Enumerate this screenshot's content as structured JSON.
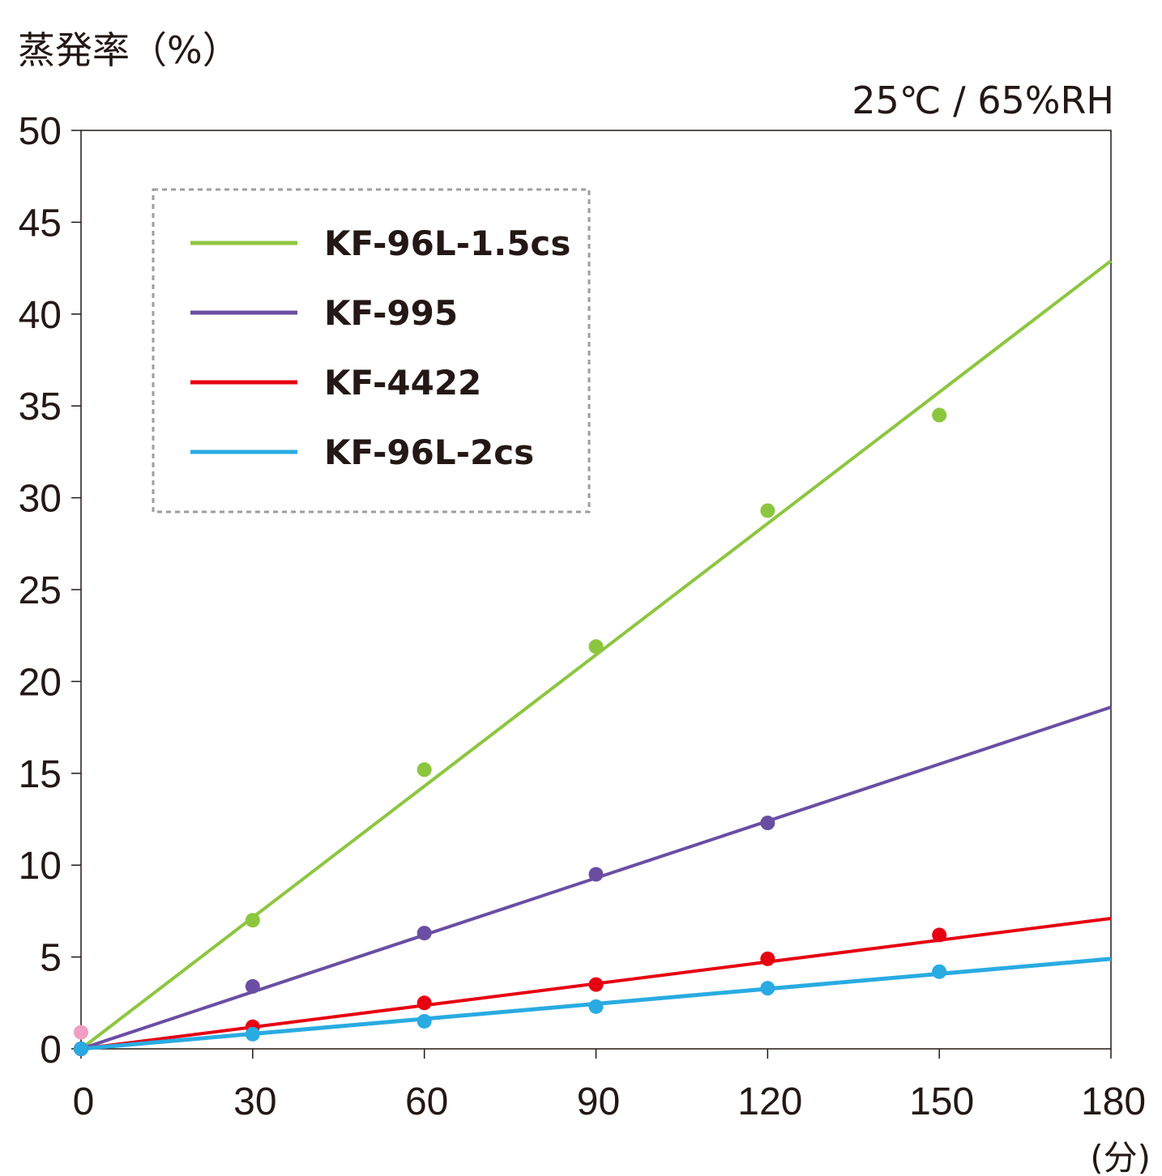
{
  "chart_data": {
    "type": "line",
    "title": "",
    "ylabel": "蒸発率（%）",
    "xlabel": "(分)",
    "condition": "25℃ / 65%RH",
    "xlim": [
      0,
      180
    ],
    "ylim": [
      0,
      50
    ],
    "xticks": [
      "0",
      "30",
      "60",
      "90",
      "120",
      "150",
      "180"
    ],
    "yticks": [
      "0",
      "5",
      "10",
      "15",
      "20",
      "25",
      "30",
      "35",
      "40",
      "45",
      "50"
    ],
    "grid": false,
    "legend_position": "top-left",
    "legend_border": "dotted",
    "series": [
      {
        "name": "KF-96L-1.5cs",
        "color": "#8cc63f",
        "points": [
          [
            0,
            0
          ],
          [
            30,
            7.0
          ],
          [
            60,
            15.2
          ],
          [
            90,
            21.9
          ],
          [
            120,
            29.3
          ],
          [
            150,
            34.5
          ]
        ],
        "fit_line": [
          [
            0,
            0
          ],
          [
            180,
            42.9
          ]
        ]
      },
      {
        "name": "KF-995",
        "color": "#6a4ea3",
        "points": [
          [
            0,
            0
          ],
          [
            30,
            3.4
          ],
          [
            60,
            6.3
          ],
          [
            90,
            9.5
          ],
          [
            120,
            12.3
          ]
        ],
        "fit_line": [
          [
            0,
            0
          ],
          [
            180,
            18.6
          ]
        ]
      },
      {
        "name": "KF-4422",
        "color": "#e60012",
        "points": [
          [
            0,
            0
          ],
          [
            30,
            1.2
          ],
          [
            60,
            2.5
          ],
          [
            90,
            3.5
          ],
          [
            120,
            4.9
          ],
          [
            150,
            6.2
          ]
        ],
        "fit_line": [
          [
            0,
            0
          ],
          [
            180,
            7.1
          ]
        ]
      },
      {
        "name": "KF-96L-2cs",
        "color": "#29abe2",
        "points": [
          [
            0,
            0
          ],
          [
            30,
            0.8
          ],
          [
            60,
            1.5
          ],
          [
            90,
            2.3
          ],
          [
            120,
            3.3
          ],
          [
            150,
            4.2
          ]
        ],
        "fit_line": [
          [
            0,
            0
          ],
          [
            180,
            4.9
          ]
        ]
      }
    ],
    "extra_points": [
      {
        "x": 0,
        "y": 0.9,
        "color": "#f19ec2"
      }
    ]
  }
}
